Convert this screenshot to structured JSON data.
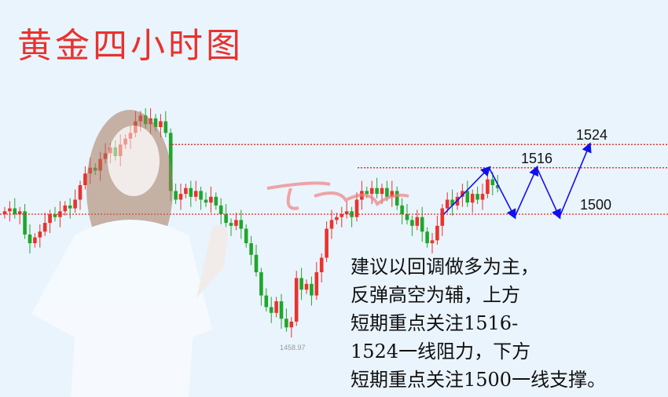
{
  "title": "黄金四小时图",
  "chart_data": {
    "type": "candlestick",
    "up_color": "#e8332e",
    "down_color": "#1fa62c",
    "level_line_color": "#e82020",
    "arrow_color": "#1010ee",
    "closes": [
      1501,
      1502,
      1500,
      1501,
      1493,
      1490,
      1492,
      1494,
      1497,
      1500,
      1499,
      1501,
      1503,
      1502,
      1505,
      1510,
      1514,
      1516,
      1515,
      1519,
      1521,
      1523,
      1520,
      1524,
      1526,
      1528,
      1532,
      1534,
      1531,
      1533,
      1530,
      1532,
      1528,
      1508,
      1505,
      1507,
      1509,
      1506,
      1508,
      1505,
      1504,
      1506,
      1503,
      1500,
      1497,
      1496,
      1498,
      1495,
      1490,
      1486,
      1480,
      1472,
      1468,
      1466,
      1470,
      1464,
      1461,
      1463,
      1478,
      1474,
      1476,
      1472,
      1480,
      1485,
      1495,
      1498,
      1499,
      1500,
      1501,
      1499,
      1505,
      1508,
      1507,
      1509,
      1507,
      1509,
      1506,
      1508,
      1503,
      1500,
      1498,
      1496,
      1499,
      1494,
      1490,
      1491,
      1496,
      1502,
      1505,
      1503,
      1506,
      1508,
      1504,
      1507,
      1505,
      1507,
      1512,
      1510,
      1509
    ],
    "low_label": "1458.97",
    "levels": [
      {
        "value": 1524,
        "label": "1524"
      },
      {
        "value": 1516,
        "label": "1516"
      },
      {
        "value": 1500,
        "label": "1500"
      }
    ],
    "arrow_path": [
      [
        87.3,
        1500
      ],
      [
        96.3,
        1516
      ],
      [
        101.4,
        1499
      ],
      [
        105.8,
        1516
      ],
      [
        110.3,
        1499
      ],
      [
        116.3,
        1524
      ]
    ]
  },
  "note": "建议以回调做多为主，\n反弹高空为辅，上方\n短期重点关注1516-\n1524一线阻力，下方\n短期重点关注1500一线支撑。"
}
